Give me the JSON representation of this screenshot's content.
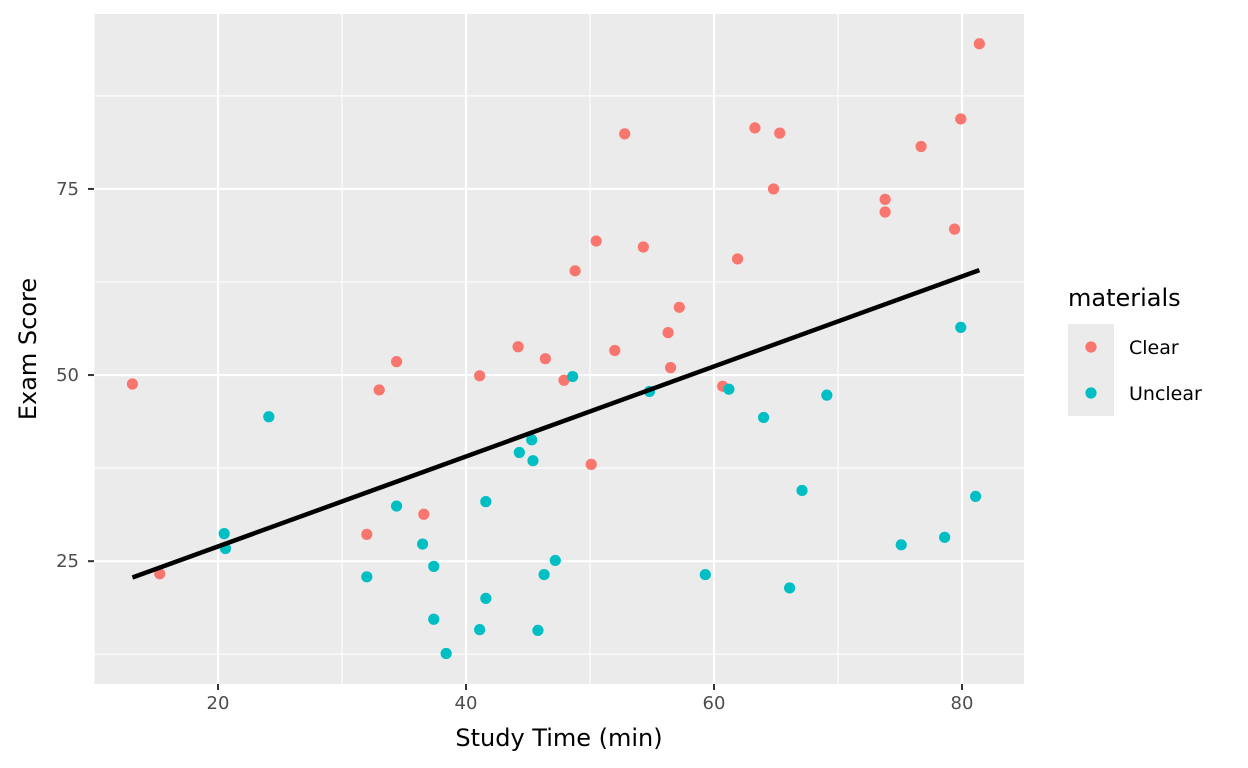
{
  "chart_data": {
    "type": "scatter",
    "xlabel": "Study Time (min)",
    "ylabel": "Exam Score",
    "xlim": [
      10,
      85
    ],
    "ylim": [
      8.5,
      98.5
    ],
    "x_ticks": [
      20,
      40,
      60,
      80
    ],
    "y_ticks": [
      25,
      50,
      75
    ],
    "grid": true,
    "legend": {
      "title": "materials",
      "position": "right",
      "entries": [
        {
          "label": "Clear",
          "color": "#F8766D"
        },
        {
          "label": "Unclear",
          "color": "#00BFC4"
        }
      ]
    },
    "series": [
      {
        "name": "Clear",
        "color": "#F8766D",
        "points": [
          [
            13.1,
            48.8
          ],
          [
            15.3,
            23.3
          ],
          [
            32.0,
            28.6
          ],
          [
            33.0,
            48.0
          ],
          [
            34.4,
            51.8
          ],
          [
            36.6,
            31.3
          ],
          [
            41.1,
            49.9
          ],
          [
            44.2,
            53.8
          ],
          [
            46.4,
            52.2
          ],
          [
            47.9,
            49.3
          ],
          [
            48.8,
            64.0
          ],
          [
            50.1,
            38.0
          ],
          [
            50.5,
            68.0
          ],
          [
            52.0,
            53.3
          ],
          [
            52.8,
            82.4
          ],
          [
            54.3,
            67.2
          ],
          [
            56.3,
            55.7
          ],
          [
            56.5,
            51.0
          ],
          [
            57.2,
            59.1
          ],
          [
            60.7,
            48.5
          ],
          [
            61.9,
            65.6
          ],
          [
            63.3,
            83.2
          ],
          [
            64.8,
            75.0
          ],
          [
            65.3,
            82.5
          ],
          [
            73.8,
            73.6
          ],
          [
            73.8,
            71.9
          ],
          [
            76.7,
            80.7
          ],
          [
            79.4,
            69.6
          ],
          [
            79.9,
            84.4
          ],
          [
            81.4,
            94.5
          ]
        ]
      },
      {
        "name": "Unclear",
        "color": "#00BFC4",
        "points": [
          [
            20.5,
            28.7
          ],
          [
            20.6,
            26.7
          ],
          [
            24.1,
            44.4
          ],
          [
            32.0,
            22.9
          ],
          [
            34.4,
            32.4
          ],
          [
            36.5,
            27.3
          ],
          [
            37.4,
            24.3
          ],
          [
            37.4,
            17.2
          ],
          [
            38.4,
            12.6
          ],
          [
            41.1,
            15.8
          ],
          [
            41.6,
            33.0
          ],
          [
            41.6,
            20.0
          ],
          [
            44.3,
            39.6
          ],
          [
            45.3,
            41.3
          ],
          [
            45.4,
            38.5
          ],
          [
            45.8,
            15.7
          ],
          [
            46.3,
            23.2
          ],
          [
            47.2,
            25.1
          ],
          [
            48.6,
            49.8
          ],
          [
            54.8,
            47.8
          ],
          [
            59.3,
            23.2
          ],
          [
            61.2,
            48.1
          ],
          [
            64.0,
            44.3
          ],
          [
            66.1,
            21.4
          ],
          [
            67.1,
            34.5
          ],
          [
            69.1,
            47.3
          ],
          [
            75.1,
            27.2
          ],
          [
            78.6,
            28.2
          ],
          [
            79.9,
            56.4
          ],
          [
            81.1,
            33.7
          ]
        ]
      }
    ],
    "trend_line": {
      "x": [
        13.1,
        81.4
      ],
      "y": [
        22.8,
        64.1
      ],
      "color": "#000000"
    }
  }
}
